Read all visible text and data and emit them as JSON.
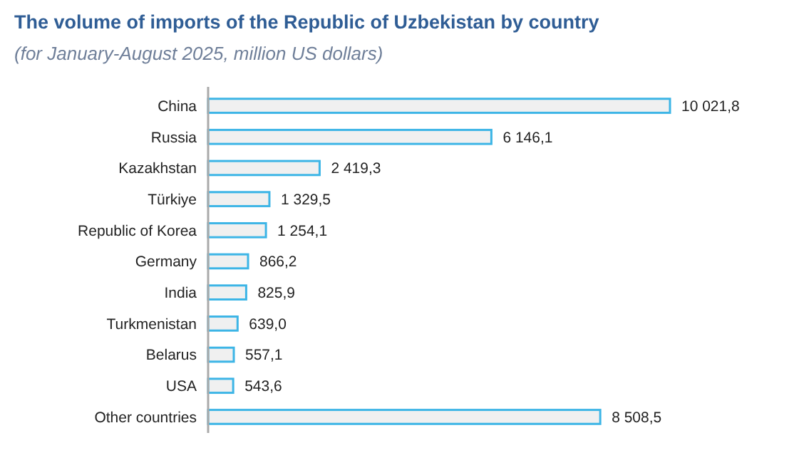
{
  "chart_data": {
    "type": "bar",
    "orientation": "horizontal",
    "title": "The volume of imports of the Republic of Uzbekistan by country",
    "subtitle": "(for January-August 2025, million US dollars)",
    "categories": [
      "China",
      "Russia",
      "Kazakhstan",
      "Türkiye",
      "Republic of Korea",
      "Germany",
      "India",
      "Turkmenistan",
      "Belarus",
      "USA",
      "Other countries"
    ],
    "values": [
      10021.8,
      6146.1,
      2419.3,
      1329.5,
      1254.1,
      866.2,
      825.9,
      639.0,
      557.1,
      543.6,
      8508.5
    ],
    "value_labels": [
      "10 021,8",
      "6 146,1",
      "2 419,3",
      "1 329,5",
      "1 254,1",
      "866,2",
      "825,9",
      "639,0",
      "557,1",
      "543,6",
      "8 508,5"
    ],
    "color": "#3db5e6"
  }
}
